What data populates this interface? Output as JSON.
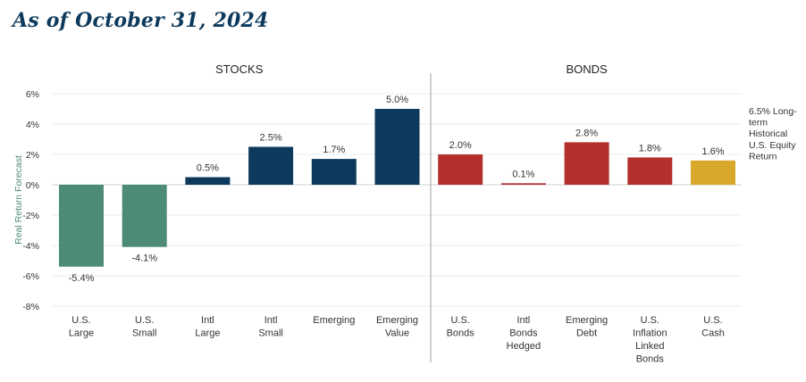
{
  "header": {
    "title": "As of October 31, 2024"
  },
  "chart_data": {
    "type": "bar",
    "title": "",
    "xlabel": "",
    "ylabel": "Real Return Forecast",
    "ylim": [
      -8,
      6
    ],
    "yticks": [
      "6%",
      "4%",
      "2%",
      "0%",
      "-2%",
      "-4%",
      "-6%",
      "-8%"
    ],
    "grid": true,
    "groups": [
      {
        "name": "STOCKS",
        "start": 0,
        "end": 5
      },
      {
        "name": "BONDS",
        "start": 6,
        "end": 10
      }
    ],
    "categories": [
      "U.S.\nLarge",
      "U.S.\nSmall",
      "Intl\nLarge",
      "Intl\nSmall",
      "Emerging",
      "Emerging\nValue",
      "U.S.\nBonds",
      "Intl\nBonds\nHedged",
      "Emerging\nDebt",
      "U.S.\nInflation\nLinked\nBonds",
      "U.S.\nCash"
    ],
    "values": [
      -5.4,
      -4.1,
      0.5,
      2.5,
      1.7,
      5.0,
      2.0,
      0.1,
      2.8,
      1.8,
      1.6
    ],
    "labels": [
      "-5.4%",
      "-4.1%",
      "0.5%",
      "2.5%",
      "1.7%",
      "5.0%",
      "2.0%",
      "0.1%",
      "2.8%",
      "1.8%",
      "1.6%"
    ],
    "colors": [
      "#4e8a78",
      "#4e8a78",
      "#0d3a5c",
      "#0d3a5c",
      "#0d3a5c",
      "#0d3a5c",
      "#b3302c",
      "#b3302c",
      "#b3302c",
      "#b3302c",
      "#d9a82a"
    ],
    "annotation": "6.5% Long-\nterm\nHistorical\nU.S. Equity\nReturn"
  }
}
